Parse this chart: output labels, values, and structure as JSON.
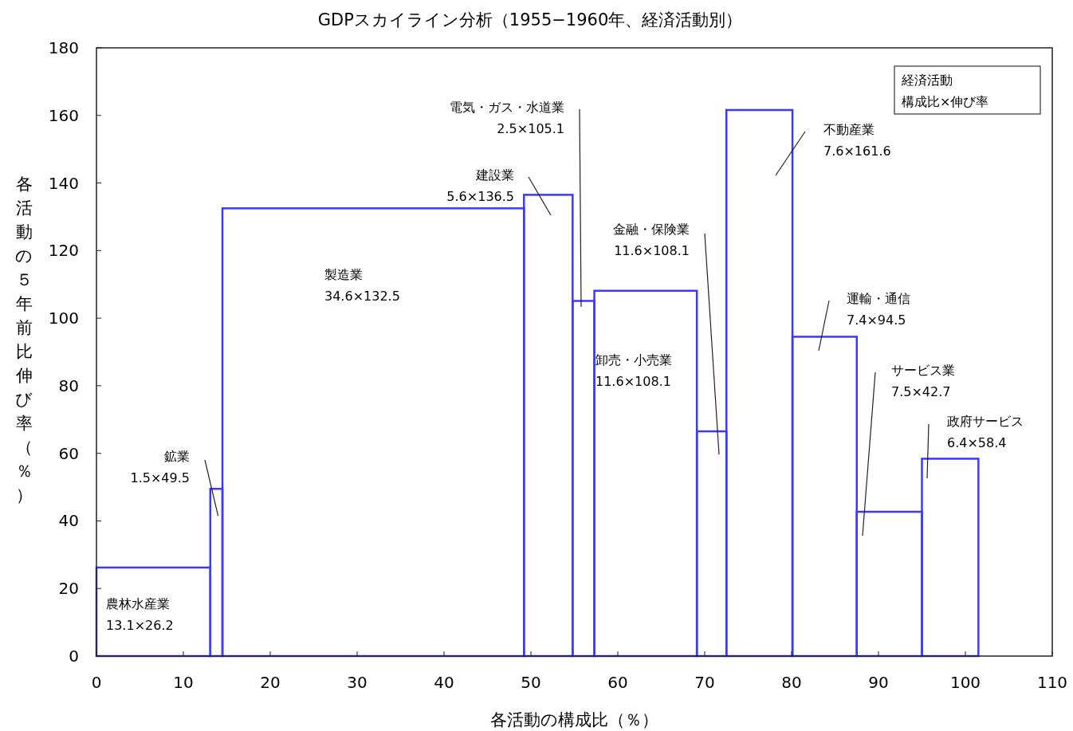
{
  "chart_data": {
    "type": "histogram",
    "title": "GDPスカイライン分析（1955−1960年、経済活動別）",
    "xlabel": "各活動の構成比（％）",
    "ylabel": "各活動の５年前比伸び率（％）",
    "bins": [
      0,
      13.1,
      14.5,
      49.2,
      54.8,
      57.3,
      69.1,
      72.5,
      80.1,
      87.5,
      95.0,
      101.5
    ],
    "values": [
      26.2,
      49.5,
      132.5,
      136.5,
      105.1,
      108.1,
      66.5,
      161.6,
      94.5,
      42.7,
      58.4
    ],
    "color": "#3a3aff",
    "xlim": [
      0,
      110
    ],
    "xticks": [
      0,
      10,
      20,
      30,
      40,
      50,
      60,
      70,
      80,
      90,
      100,
      110
    ],
    "ylim": [
      0,
      180
    ],
    "yticks": [
      0,
      20,
      40,
      60,
      80,
      100,
      120,
      140,
      160,
      180
    ],
    "grid": false,
    "annotations": [
      "農林水産業\n13.1×26.2",
      {
        "text": "鉱業\n1.5×49.5",
        "x": 14.0,
        "y": 41.5
      },
      "製造業\n34.6×132.5",
      "建設業\n5.6×136.5",
      "電気・ガス・水道業\n2.5×105.1",
      "金融・保険業\n11.6×108.1",
      "卸売・小売業\n11.6×108.1",
      "不動産業\n7.6×161.6",
      "運輸・通信\n7.4×94.5",
      "サービス業\n7.5×42.7",
      "政府サービス\n6.4×58.4",
      "経済活動",
      "構成比×伸び率"
    ]
  }
}
